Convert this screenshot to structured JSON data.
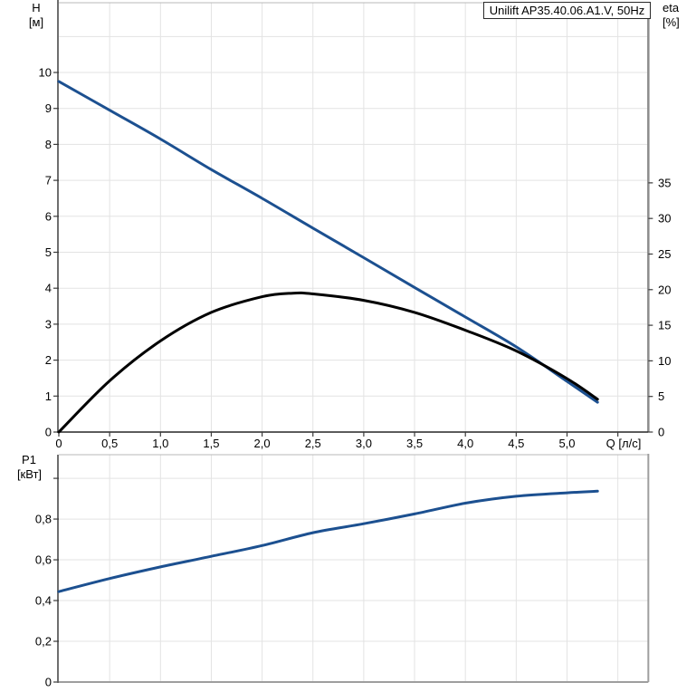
{
  "title_box": {
    "text": "Unilift AP35.40.06.A1.V, 50Hz"
  },
  "axis_labels": {
    "top_left_1": "H",
    "top_left_2": "[м]",
    "top_right_1": "eta",
    "top_right_2": "[%]",
    "bottom_left_1": "P1",
    "bottom_left_2": "[кВт]"
  },
  "colors": {
    "curve_blue": "#1c5090",
    "curve_black": "#000000",
    "grid": "#e3e3e3",
    "frame": "#b8b8b8",
    "axis_left": "#6e6e6e",
    "axis_right_top_chart": "#8c8c8c",
    "axis_bottom_top_chart": "#262626",
    "axis_gray_bottom_chart": "#9e9e9e",
    "tick": "#3c3c3c",
    "text": "#000000"
  },
  "chart_data": [
    {
      "type": "line",
      "name": "hq-eta-chart",
      "title": "Unilift AP35.40.06.A1.V, 50Hz",
      "x_axis": {
        "label": "Q [л/с]",
        "min": 0,
        "max": 5.8,
        "gridline_values": [
          0.5,
          1.0,
          1.5,
          2.0,
          2.5,
          3.0,
          3.5,
          4.0,
          4.5,
          5.0,
          5.5
        ],
        "tick_values": [
          0,
          0.5,
          1.0,
          1.5,
          2.0,
          2.5,
          3.0,
          3.5,
          4.0,
          4.5,
          5.0,
          5.5
        ],
        "tick_labels": [
          "0",
          "0,5",
          "1,0",
          "1,5",
          "2,0",
          "2,5",
          "3,0",
          "3,5",
          "4,0",
          "4,5",
          "5,0",
          ""
        ]
      },
      "y_axis_left": {
        "label": "H [м]",
        "min": 0,
        "max": 11.94,
        "gridline_values": [
          1,
          2,
          3,
          4,
          5,
          6,
          7,
          8,
          9,
          10,
          11
        ],
        "tick_values": [
          0,
          1,
          2,
          3,
          4,
          5,
          6,
          7,
          8,
          9,
          10
        ],
        "tick_labels": [
          "0",
          "1",
          "2",
          "3",
          "4",
          "5",
          "6",
          "7",
          "8",
          "9",
          "10"
        ]
      },
      "y_axis_right": {
        "label": "eta [%]",
        "min": 0,
        "max": 60.3,
        "tick_values": [
          0,
          5,
          10,
          15,
          20,
          25,
          30,
          35
        ],
        "tick_labels": [
          "0",
          "5",
          "10",
          "15",
          "20",
          "25",
          "30",
          "35"
        ]
      },
      "grid": true,
      "legend": "none",
      "series": [
        {
          "name": "head-curve",
          "color_key": "curve_blue",
          "y_axis": "left",
          "points": [
            [
              0,
              9.75
            ],
            [
              0.5,
              8.95
            ],
            [
              1.0,
              8.15
            ],
            [
              1.5,
              7.3
            ],
            [
              2.0,
              6.5
            ],
            [
              2.5,
              5.67
            ],
            [
              3.0,
              4.85
            ],
            [
              3.5,
              4.02
            ],
            [
              4.0,
              3.2
            ],
            [
              4.5,
              2.37
            ],
            [
              5.0,
              1.41
            ],
            [
              5.3,
              0.83
            ]
          ]
        },
        {
          "name": "efficiency-curve",
          "color_key": "curve_black",
          "y_axis": "right",
          "points": [
            [
              0,
              0
            ],
            [
              0.5,
              7.2
            ],
            [
              1.0,
              12.8
            ],
            [
              1.5,
              16.8
            ],
            [
              2.0,
              19.0
            ],
            [
              2.3,
              19.5
            ],
            [
              2.5,
              19.4
            ],
            [
              3.0,
              18.5
            ],
            [
              3.5,
              16.8
            ],
            [
              4.0,
              14.3
            ],
            [
              4.5,
              11.4
            ],
            [
              5.0,
              7.5
            ],
            [
              5.3,
              4.6
            ]
          ]
        }
      ]
    },
    {
      "type": "line",
      "name": "p1-chart",
      "title": "",
      "x_axis": {
        "label": "",
        "min": 0,
        "max": 5.8,
        "gridline_values": [
          0.5,
          1.0,
          1.5,
          2.0,
          2.5,
          3.0,
          3.5,
          4.0,
          4.5,
          5.0,
          5.5
        ],
        "tick_values": [],
        "tick_labels": []
      },
      "y_axis_left": {
        "label": "P1 [кВт]",
        "min": 0,
        "max": 1.116,
        "gridline_values": [
          0.2,
          0.4,
          0.6,
          0.8,
          1.0
        ],
        "tick_values": [
          0,
          0.2,
          0.4,
          0.6,
          0.8,
          1.0
        ],
        "tick_labels": [
          "0",
          "0,2",
          "0,4",
          "0,6",
          "0,8",
          ""
        ]
      },
      "grid": true,
      "legend": "none",
      "series": [
        {
          "name": "power-curve",
          "color_key": "curve_blue",
          "y_axis": "left",
          "points": [
            [
              0,
              0.444
            ],
            [
              0.5,
              0.508
            ],
            [
              1.0,
              0.565
            ],
            [
              1.5,
              0.617
            ],
            [
              2.0,
              0.67
            ],
            [
              2.5,
              0.733
            ],
            [
              3.0,
              0.777
            ],
            [
              3.5,
              0.825
            ],
            [
              4.0,
              0.878
            ],
            [
              4.5,
              0.912
            ],
            [
              5.0,
              0.929
            ],
            [
              5.3,
              0.937
            ]
          ]
        }
      ]
    }
  ]
}
